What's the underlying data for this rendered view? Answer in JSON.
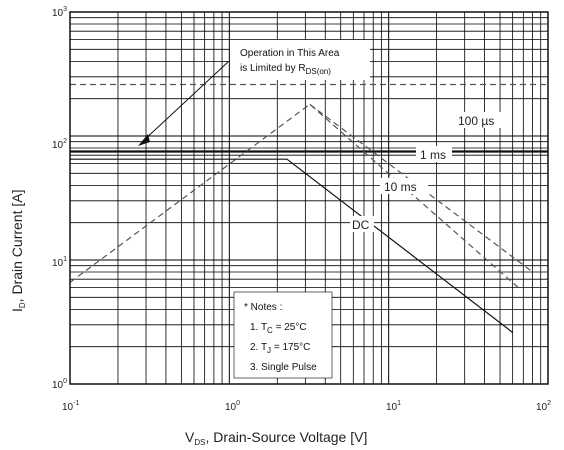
{
  "chart_data": {
    "type": "line",
    "x_scale": "log",
    "y_scale": "log",
    "xlim": [
      0.1,
      100
    ],
    "ylim": [
      1,
      1000
    ],
    "x_ticks": [
      {
        "base": "10",
        "exp": "-1"
      },
      {
        "base": "10",
        "exp": "0"
      },
      {
        "base": "10",
        "exp": "1"
      },
      {
        "base": "10",
        "exp": "2"
      }
    ],
    "y_ticks": [
      {
        "base": "10",
        "exp": "0"
      },
      {
        "base": "10",
        "exp": "1"
      },
      {
        "base": "10",
        "exp": "2"
      },
      {
        "base": "10",
        "exp": "3"
      }
    ],
    "xlabel": {
      "main": "V",
      "sub": "DS",
      "rest": ", Drain-Source Voltage [V]"
    },
    "ylabel": {
      "main": "I",
      "sub": "D",
      "rest": ", Drain Current [A]"
    },
    "grid": true,
    "series": [
      {
        "name": "100 µs",
        "style": "dashed",
        "x": [
          0.1,
          100
        ],
        "y": [
          260,
          260
        ]
      },
      {
        "name": "1 ms",
        "style": "solid",
        "x": [
          0.1,
          100
        ],
        "y": [
          75,
          75
        ]
      },
      {
        "name": "10 ms",
        "style": "dashed",
        "x": [
          0.1,
          3.2,
          65
        ],
        "y": [
          6.6,
          180,
          6
        ]
      },
      {
        "name": "DC",
        "style": "solid",
        "x": [
          0.1,
          2.3,
          60
        ],
        "y": [
          65,
          65,
          2.6
        ]
      },
      {
        "name": "",
        "style": "dashed",
        "x": [
          3.2,
          80
        ],
        "y": [
          180,
          8
        ]
      }
    ],
    "curve_labels": [
      "100 µs",
      "1 ms",
      "10 ms",
      "DC"
    ],
    "annotation": {
      "line1": "Operation in This Area",
      "line2": "is Limited by R",
      "line2_sub": "DS(on)"
    },
    "notes": {
      "title": "* Notes :",
      "items": [
        {
          "prefix": "1. T",
          "sub": "C",
          "value": " = 25°C"
        },
        {
          "prefix": "2. T",
          "sub": "J",
          "value": " = 175°C"
        },
        {
          "prefix": "3. Single Pulse",
          "sub": "",
          "value": ""
        }
      ]
    }
  }
}
